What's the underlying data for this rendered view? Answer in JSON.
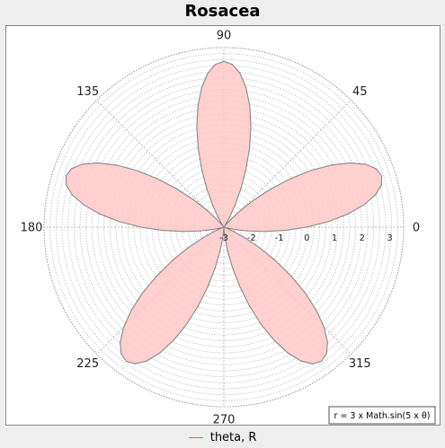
{
  "chart_data": {
    "type": "polar",
    "title": "Rosacea",
    "function_label": "r = 3 x Math.sin(5 x θ)",
    "series": [
      {
        "name": "theta, R",
        "color": "#e06666",
        "fill": "#ffc8c8",
        "outline": "#888888",
        "theta_deg": [
          0,
          3,
          6,
          9,
          12,
          15,
          18,
          21,
          24,
          27,
          30,
          33,
          36,
          39,
          42,
          45,
          48,
          51,
          54,
          57,
          60,
          63,
          66,
          69,
          72,
          75,
          78,
          81,
          84,
          87,
          90,
          93,
          96,
          99,
          102,
          105,
          108,
          111,
          114,
          117,
          120,
          123,
          126,
          129,
          132,
          135,
          138,
          141,
          144,
          147,
          150,
          153,
          156,
          159,
          162,
          165,
          168,
          171,
          174,
          177,
          180,
          183,
          186,
          189,
          192,
          195,
          198,
          201,
          204,
          207,
          210,
          213,
          216,
          219,
          222,
          225,
          228,
          231,
          234,
          237,
          240,
          243,
          246,
          249,
          252,
          255,
          258,
          261,
          264,
          267,
          270,
          273,
          276,
          279,
          282,
          285,
          288,
          291,
          294,
          297,
          300,
          303,
          306,
          309,
          312,
          315,
          318,
          321,
          324,
          327,
          330,
          333,
          336,
          339,
          342,
          345,
          348,
          351,
          354,
          357,
          360
        ],
        "r": [
          0,
          0.78,
          1.5,
          2.12,
          2.6,
          2.9,
          3.0,
          2.9,
          2.6,
          2.12,
          1.5,
          0.78,
          0,
          -0.78,
          -1.5,
          -2.12,
          -2.6,
          -2.9,
          -3.0,
          -2.9,
          -2.6,
          -2.12,
          -1.5,
          -0.78,
          0,
          0.78,
          1.5,
          2.12,
          2.6,
          2.9,
          3.0,
          2.9,
          2.6,
          2.12,
          1.5,
          0.78,
          0,
          -0.78,
          -1.5,
          -2.12,
          -2.6,
          -2.9,
          -3.0,
          -2.9,
          -2.6,
          -2.12,
          -1.5,
          -0.78,
          0,
          0.78,
          1.5,
          2.12,
          2.6,
          2.9,
          3.0,
          2.9,
          2.6,
          2.12,
          1.5,
          0.78,
          0,
          -0.78,
          -1.5,
          -2.12,
          -2.6,
          -2.9,
          -3.0,
          -2.9,
          -2.6,
          -2.12,
          -1.5,
          -0.78,
          0,
          0.78,
          1.5,
          2.12,
          2.6,
          2.9,
          3.0,
          2.9,
          2.6,
          2.12,
          1.5,
          0.78,
          0,
          -0.78,
          -1.5,
          -2.12,
          -2.6,
          -2.9,
          -3.0,
          -2.9,
          -2.6,
          -2.12,
          -1.5,
          -0.78,
          0,
          0.78,
          1.5,
          2.12,
          2.6,
          2.9,
          3.0,
          2.9,
          2.6,
          2.12,
          1.5,
          0.78,
          0,
          -0.78,
          -1.5,
          -2.12,
          -2.6,
          -2.9,
          -3.0,
          -2.9,
          -2.6,
          -2.12,
          -1.5,
          -0.78,
          0
        ]
      }
    ],
    "angle_ticks": [
      "0",
      "45",
      "90",
      "135",
      "180",
      "225",
      "270",
      "315"
    ],
    "radial_ticks": [
      "-3",
      "-2",
      "-1",
      "0",
      "1",
      "2",
      "3"
    ],
    "radial_range": [
      -3,
      3.5
    ],
    "grid": true,
    "legend_placement": "bottom"
  }
}
